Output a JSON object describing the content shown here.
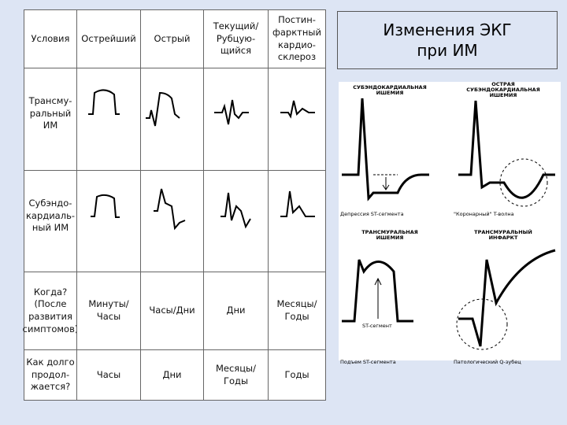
{
  "title": "Изменения ЭКГ\nпри  ИМ",
  "table": {
    "header": [
      "Условия",
      "Острейший",
      "Острый",
      "Текущий/\nРубцую-\nщийся",
      "Постин-\nфарктный\nкардио-\nсклероз"
    ],
    "rows": [
      [
        "Трансму-\nральный\nИМ"
      ],
      [
        "Субэндо-\nкардиаль-\nный ИМ"
      ],
      [
        "Когда?\n(После\nразвития\nсимптомов)",
        "Минуты/\nЧасы",
        "Часы/Дни",
        "Дни",
        "Месяцы/\nГоды"
      ],
      [
        "Как долго\nпродол-\nжается?",
        "Часы",
        "Дни",
        "Месяцы/\nГоды",
        "Годы"
      ]
    ]
  },
  "diagram": {
    "panels": [
      {
        "title": "СУБЭНДОКАРДИАЛЬНАЯ\nИШЕМИЯ",
        "caption": "Депрессия ST-сегмента"
      },
      {
        "title": "ОСТРАЯ\nСУБЭНДОКАРДИАЛЬНАЯ\nИШЕМИЯ",
        "caption": "\"Коронарный\" T-волна"
      },
      {
        "title": "ТРАНСМУРАЛЬНАЯ\nИШЕМИЯ",
        "caption": "Подъем ST-сегмента"
      },
      {
        "title": "ТРАНСМУРАЛЬНЫЙ\nИНФАРКТ",
        "caption": "Патологический Q-зубец"
      }
    ],
    "st_label": "ST-сегмент"
  }
}
